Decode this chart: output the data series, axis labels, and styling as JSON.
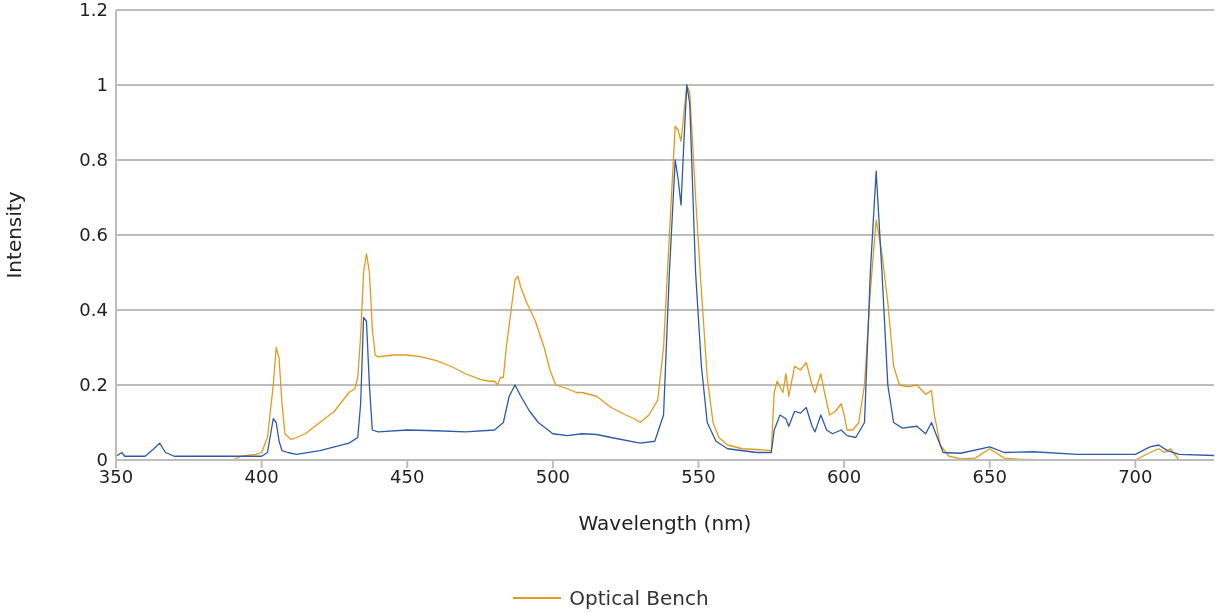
{
  "chart_data": {
    "type": "line",
    "xlabel": "Wavelength (nm)",
    "ylabel": "Intensity",
    "xlim": [
      350,
      727
    ],
    "xticks": [
      350,
      400,
      450,
      500,
      550,
      600,
      650,
      700
    ],
    "ylim": [
      0,
      1.2
    ],
    "yticks": [
      0,
      0.2,
      0.4,
      0.6,
      0.8,
      1,
      1.2
    ],
    "grid": "y",
    "legend": "bottom",
    "marker": "none",
    "line_style": "solid",
    "series": [
      {
        "name": "Optical Bench",
        "color": "#e39b1b",
        "x": [
          350,
          390,
          393,
          398,
          400,
          402,
          404,
          405,
          406,
          407,
          408,
          410,
          412,
          415,
          420,
          425,
          428,
          430,
          432,
          433,
          434,
          435,
          436,
          437,
          438,
          439,
          440,
          445,
          450,
          455,
          460,
          465,
          470,
          475,
          478,
          480,
          481,
          482,
          483,
          484,
          486,
          487,
          488,
          489,
          491,
          494,
          497,
          499,
          501,
          505,
          508,
          510,
          515,
          520,
          525,
          528,
          530,
          533,
          536,
          538,
          540,
          542,
          543,
          544,
          546,
          547,
          549,
          551,
          553,
          555,
          557,
          560,
          565,
          570,
          575,
          576,
          577,
          579,
          580,
          581,
          583,
          585,
          587,
          589,
          590,
          592,
          593,
          595,
          597,
          599,
          600,
          601,
          603,
          605,
          607,
          609,
          611,
          613,
          615,
          617,
          619,
          622,
          625,
          628,
          630,
          631,
          633,
          636,
          640,
          645,
          650,
          655,
          660,
          670,
          700,
          705,
          708,
          710,
          712,
          714,
          715,
          727
        ],
        "values": [
          0,
          0,
          0.01,
          0.015,
          0.02,
          0.06,
          0.2,
          0.3,
          0.27,
          0.15,
          0.07,
          0.055,
          0.06,
          0.07,
          0.1,
          0.13,
          0.16,
          0.18,
          0.19,
          0.22,
          0.33,
          0.5,
          0.55,
          0.5,
          0.35,
          0.28,
          0.275,
          0.28,
          0.28,
          0.275,
          0.265,
          0.25,
          0.23,
          0.215,
          0.21,
          0.21,
          0.2,
          0.22,
          0.22,
          0.3,
          0.42,
          0.48,
          0.49,
          0.46,
          0.42,
          0.37,
          0.3,
          0.24,
          0.2,
          0.19,
          0.18,
          0.18,
          0.17,
          0.14,
          0.12,
          0.11,
          0.1,
          0.12,
          0.16,
          0.3,
          0.6,
          0.89,
          0.88,
          0.85,
          1,
          0.98,
          0.7,
          0.45,
          0.22,
          0.1,
          0.06,
          0.04,
          0.03,
          0.028,
          0.025,
          0.18,
          0.21,
          0.18,
          0.23,
          0.17,
          0.25,
          0.24,
          0.26,
          0.2,
          0.18,
          0.23,
          0.19,
          0.12,
          0.13,
          0.15,
          0.12,
          0.08,
          0.08,
          0.1,
          0.2,
          0.45,
          0.64,
          0.55,
          0.42,
          0.25,
          0.2,
          0.195,
          0.2,
          0.175,
          0.185,
          0.12,
          0.04,
          0.01,
          0.003,
          0.005,
          0.03,
          0.005,
          0.002,
          0,
          0,
          0.02,
          0.03,
          0.02,
          0.03,
          0.01,
          0,
          0
        ]
      },
      {
        "color": "#2e5aa8",
        "x": [
          350,
          352,
          353,
          360,
          363,
          365,
          367,
          370,
          400,
          402,
          404,
          405,
          406,
          407,
          409,
          412,
          420,
          430,
          433,
          434,
          435,
          436,
          437,
          438,
          440,
          450,
          460,
          470,
          480,
          483,
          485,
          487,
          489,
          492,
          495,
          500,
          505,
          510,
          515,
          520,
          530,
          535,
          538,
          540,
          542,
          543,
          544,
          545,
          546,
          547,
          549,
          551,
          553,
          556,
          560,
          570,
          575,
          576,
          578,
          580,
          581,
          583,
          585,
          587,
          589,
          590,
          592,
          594,
          596,
          599,
          601,
          604,
          607,
          609,
          611,
          613,
          615,
          617,
          620,
          625,
          628,
          630,
          632,
          634,
          640,
          650,
          655,
          665,
          680,
          700,
          705,
          708,
          711,
          715,
          727
        ],
        "values": [
          0.01,
          0.02,
          0.01,
          0.01,
          0.03,
          0.045,
          0.02,
          0.01,
          0.01,
          0.02,
          0.11,
          0.1,
          0.05,
          0.025,
          0.02,
          0.015,
          0.025,
          0.045,
          0.06,
          0.15,
          0.38,
          0.37,
          0.2,
          0.08,
          0.075,
          0.08,
          0.078,
          0.075,
          0.08,
          0.1,
          0.17,
          0.2,
          0.17,
          0.13,
          0.1,
          0.07,
          0.065,
          0.07,
          0.068,
          0.06,
          0.045,
          0.05,
          0.12,
          0.5,
          0.8,
          0.75,
          0.68,
          0.85,
          1,
          0.95,
          0.5,
          0.25,
          0.1,
          0.05,
          0.03,
          0.02,
          0.02,
          0.08,
          0.12,
          0.11,
          0.09,
          0.13,
          0.125,
          0.14,
          0.09,
          0.075,
          0.12,
          0.08,
          0.07,
          0.08,
          0.065,
          0.06,
          0.1,
          0.5,
          0.77,
          0.5,
          0.2,
          0.1,
          0.085,
          0.09,
          0.07,
          0.1,
          0.06,
          0.02,
          0.018,
          0.035,
          0.02,
          0.022,
          0.015,
          0.015,
          0.035,
          0.04,
          0.025,
          0.015,
          0.012
        ]
      }
    ]
  }
}
